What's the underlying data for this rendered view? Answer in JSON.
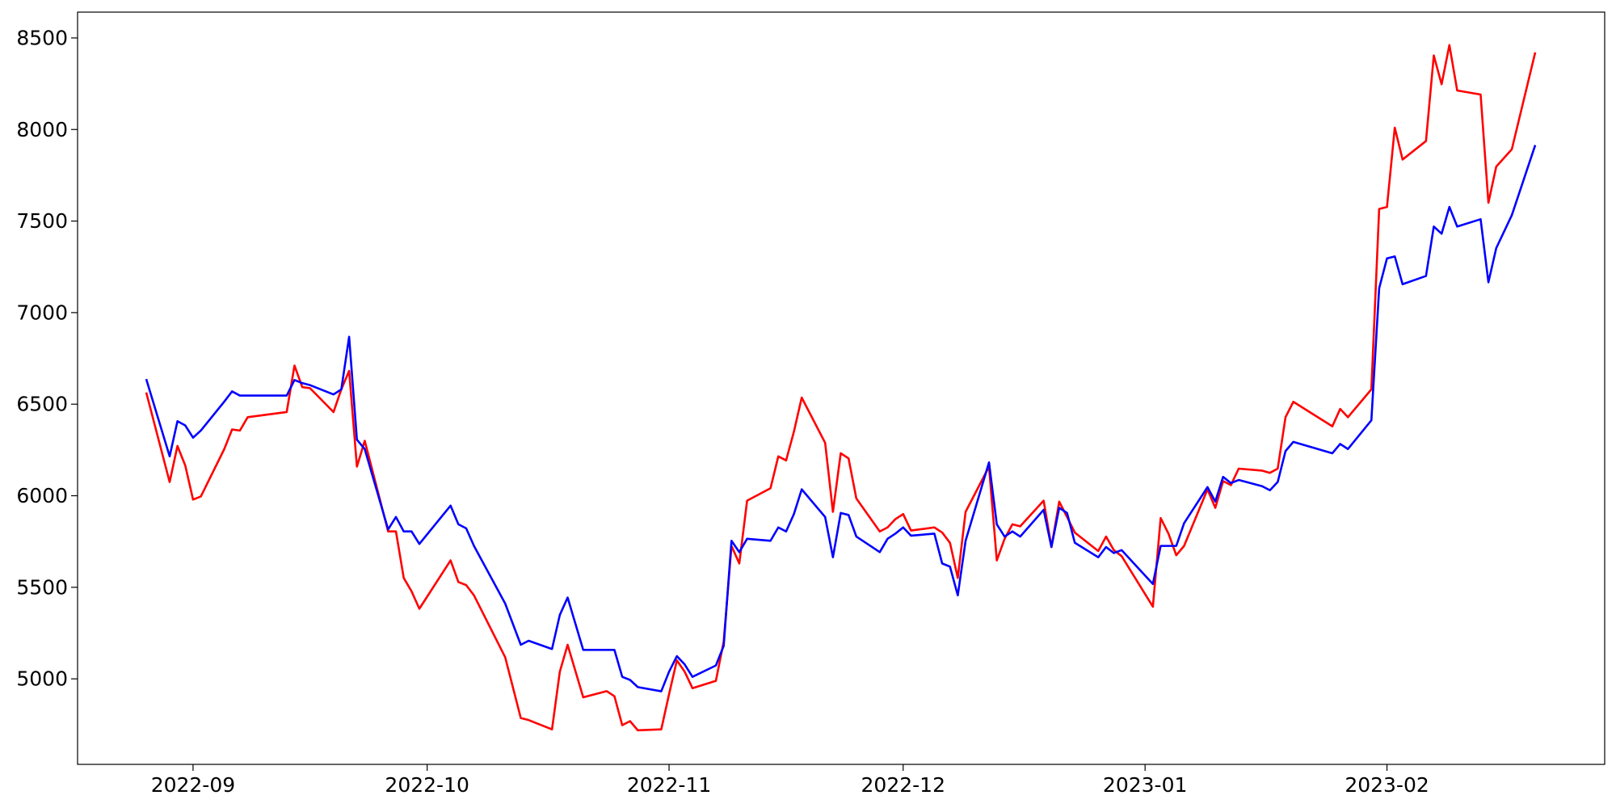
{
  "chart_data": {
    "type": "line",
    "x": [
      19230,
      19233,
      19234,
      19235,
      19236,
      19237,
      19240,
      19241,
      19242,
      19243,
      19248,
      19249,
      19250,
      19251,
      19254,
      19255,
      19256,
      19257,
      19258,
      19261,
      19262,
      19263,
      19264,
      19265,
      19269,
      19270,
      19271,
      19272,
      19276,
      19278,
      19279,
      19282,
      19283,
      19284,
      19286,
      19289,
      19290,
      19291,
      19292,
      19293,
      19296,
      19297,
      19298,
      19299,
      19300,
      19303,
      19304,
      19305,
      19306,
      19307,
      19310,
      19311,
      19312,
      19313,
      19314,
      19317,
      19318,
      19319,
      19320,
      19321,
      19324,
      19325,
      19326,
      19327,
      19328,
      19331,
      19332,
      19333,
      19334,
      19335,
      19338,
      19339,
      19340,
      19341,
      19342,
      19345,
      19346,
      19347,
      19348,
      19349,
      19352,
      19353,
      19354,
      19355,
      19359,
      19360,
      19361,
      19362,
      19363,
      19366,
      19367,
      19368,
      19369,
      19370,
      19373,
      19374,
      19375,
      19376,
      19377,
      19382,
      19383,
      19384,
      19387,
      19388,
      19389,
      19390,
      19391,
      19394,
      19395,
      19396,
      19397,
      19398,
      19401,
      19402,
      19403,
      19405,
      19408
    ],
    "series": [
      {
        "color": "#ff0000",
        "values": [
          6564,
          6075,
          6272,
          6165,
          5979,
          5996,
          6255,
          6362,
          6356,
          6429,
          6457,
          6711,
          6593,
          6587,
          6457,
          6581,
          6682,
          6159,
          6300,
          5805,
          5805,
          5551,
          5478,
          5383,
          5647,
          5529,
          5512,
          5456,
          5118,
          4786,
          4775,
          4724,
          5039,
          5186,
          4899,
          4933,
          4905,
          4747,
          4769,
          4719,
          4724,
          4916,
          5101,
          5039,
          4949,
          4989,
          5203,
          5726,
          5630,
          5973,
          6041,
          6215,
          6193,
          6350,
          6536,
          6289,
          5912,
          6232,
          6204,
          5985,
          5805,
          5827,
          5872,
          5900,
          5810,
          5827,
          5799,
          5743,
          5551,
          5912,
          6159,
          5647,
          5765,
          5844,
          5833,
          5973,
          5720,
          5968,
          5884,
          5799,
          5698,
          5777,
          5703,
          5670,
          5394,
          5878,
          5793,
          5675,
          5726,
          6035,
          5934,
          6080,
          6058,
          6148,
          6137,
          6125,
          6148,
          6429,
          6513,
          6379,
          6474,
          6429,
          6581,
          7566,
          7577,
          8010,
          7836,
          7937,
          8404,
          8247,
          8461,
          8213,
          8191,
          7600,
          7797,
          7892,
          8421
        ]
      },
      {
        "color": "#0000ff",
        "values": [
          6637,
          6215,
          6407,
          6384,
          6317,
          6356,
          6514,
          6570,
          6547,
          6547,
          6547,
          6632,
          6615,
          6604,
          6553,
          6581,
          6868,
          6306,
          6255,
          5816,
          5884,
          5805,
          5805,
          5737,
          5946,
          5844,
          5822,
          5726,
          5411,
          5186,
          5208,
          5163,
          5349,
          5444,
          5158,
          5158,
          5158,
          5011,
          4994,
          4955,
          4932,
          5039,
          5124,
          5079,
          5011,
          5073,
          5180,
          5754,
          5692,
          5765,
          5754,
          5827,
          5805,
          5900,
          6035,
          5884,
          5664,
          5906,
          5895,
          5777,
          5692,
          5765,
          5793,
          5827,
          5782,
          5793,
          5630,
          5613,
          5456,
          5754,
          6182,
          5844,
          5777,
          5805,
          5777,
          5923,
          5720,
          5934,
          5906,
          5743,
          5664,
          5720,
          5687,
          5703,
          5518,
          5726,
          5726,
          5726,
          5850,
          6047,
          5968,
          6103,
          6069,
          6086,
          6052,
          6030,
          6075,
          6244,
          6294,
          6232,
          6283,
          6255,
          6412,
          7133,
          7296,
          7307,
          7155,
          7200,
          7470,
          7431,
          7577,
          7470,
          7510,
          7166,
          7352,
          7532,
          7915
        ]
      }
    ],
    "xlim": [
      19221.2,
      19416.9
    ],
    "xticks": [
      {
        "value": 19236,
        "label": "2022-09"
      },
      {
        "value": 19266,
        "label": "2022-10"
      },
      {
        "value": 19297,
        "label": "2022-11"
      },
      {
        "value": 19327,
        "label": "2022-12"
      },
      {
        "value": 19358,
        "label": "2023-01"
      },
      {
        "value": 19389,
        "label": "2023-02"
      }
    ],
    "ylim": [
      4533,
      8641
    ],
    "yticks": [
      5000,
      5500,
      6000,
      6500,
      7000,
      7500,
      8000,
      8500
    ],
    "grid": false
  }
}
